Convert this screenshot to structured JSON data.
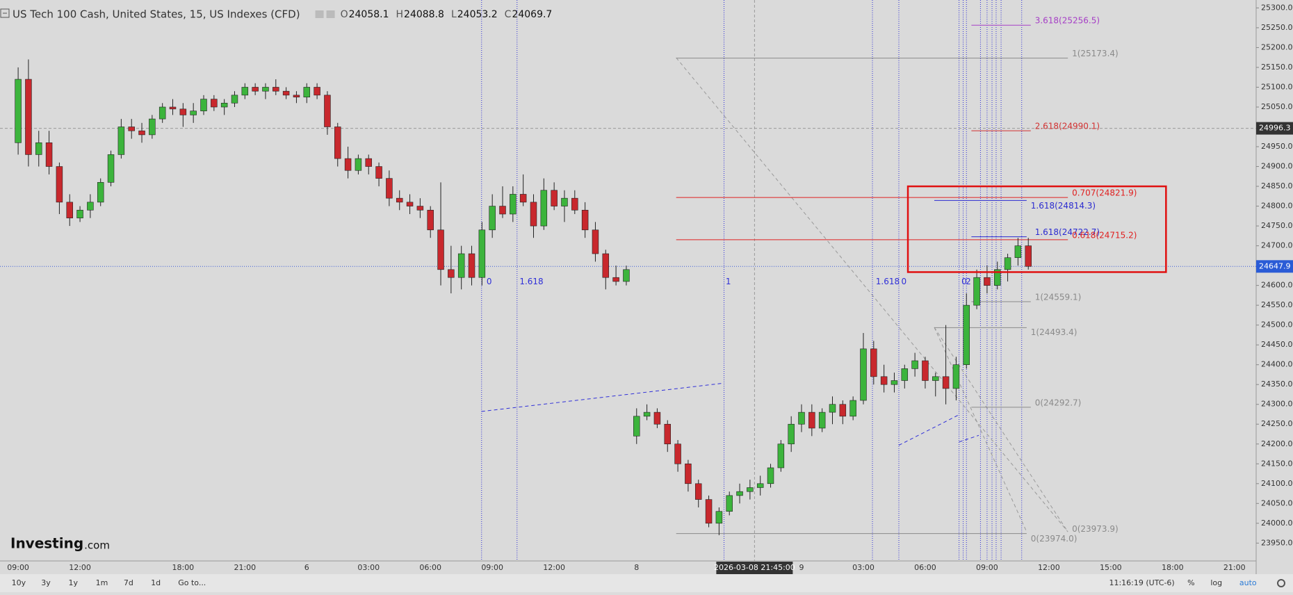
{
  "chart_data": {
    "type": "candlestick",
    "title": "US Tech 100 Cash, United States, 15, US Indexes (CFD)",
    "ohlc_legend": [
      {
        "label": "O",
        "value": 24058.1
      },
      {
        "label": "H",
        "value": 24088.8
      },
      {
        "label": "L",
        "value": 24053.2
      },
      {
        "label": "C",
        "value": 24069.7
      }
    ],
    "categories": [
      "09:00",
      null,
      null,
      null,
      null,
      null,
      "12:00",
      null,
      null,
      null,
      null,
      null,
      null,
      null,
      null,
      null,
      "18:00",
      null,
      null,
      null,
      null,
      null,
      "21:00",
      null,
      null,
      null,
      null,
      null,
      "6",
      null,
      null,
      null,
      null,
      null,
      "03:00",
      null,
      null,
      null,
      null,
      null,
      "06:00",
      null,
      null,
      null,
      null,
      null,
      "09:00",
      null,
      null,
      null,
      null,
      null,
      "12:00",
      null,
      null,
      null,
      null,
      null,
      null,
      null,
      "8",
      null,
      null,
      null,
      null,
      null,
      null,
      null,
      null,
      null,
      null,
      null,
      null,
      null,
      null,
      null,
      "9",
      null,
      null,
      null,
      null,
      null,
      "03:00",
      null,
      null,
      null,
      null,
      null,
      "06:00",
      null,
      null,
      null,
      null,
      null,
      "09:00",
      null,
      null,
      null,
      null,
      null,
      "12:00",
      null,
      null,
      null,
      null,
      null,
      "15:00",
      null,
      null,
      null,
      null,
      null,
      "18:00",
      null,
      null,
      null,
      null,
      null,
      "21:00"
    ],
    "open": [
      24960,
      25120,
      24930,
      24960,
      24900,
      24810,
      24770,
      24790,
      24810,
      24860,
      24930,
      25000,
      24990,
      24980,
      25020,
      25050,
      25045,
      25030,
      25040,
      25070,
      25050,
      25060,
      25080,
      25100,
      25090,
      25100,
      25090,
      25080,
      25075,
      25100,
      25080,
      25000,
      24920,
      24890,
      24920,
      24900,
      24870,
      24820,
      24810,
      24800,
      24790,
      24740,
      24640,
      24620,
      24680,
      24620,
      24740,
      24800,
      24780,
      24830,
      24810,
      24750,
      24840,
      24800,
      24820,
      24790,
      24740,
      24680,
      24620,
      24610,
      24220,
      24270,
      24280,
      24250,
      24200,
      24150,
      24100,
      24060,
      24000,
      24030,
      24070,
      24080,
      24090,
      24100,
      24140,
      24200,
      24250,
      24280,
      24240,
      24280,
      24300,
      24270,
      24310,
      24440,
      24370,
      24350,
      24360,
      24390,
      24410,
      24360,
      24370,
      24340,
      24400,
      24550,
      24620,
      24600,
      24640,
      24670,
      24700,
      null,
      null,
      null,
      null,
      null,
      null,
      null,
      null,
      null,
      null,
      null,
      null,
      null,
      null,
      null,
      null,
      null,
      null,
      null,
      null
    ],
    "high": [
      25150,
      25170,
      24990,
      24990,
      24910,
      24830,
      24800,
      24830,
      24870,
      24940,
      25020,
      25020,
      25010,
      25030,
      25060,
      25070,
      25060,
      25060,
      25080,
      25080,
      25070,
      25090,
      25110,
      25110,
      25110,
      25120,
      25100,
      25090,
      25110,
      25110,
      25090,
      25010,
      24950,
      24930,
      24930,
      24910,
      24890,
      24840,
      24830,
      24820,
      24800,
      24860,
      24700,
      24700,
      24700,
      24760,
      24830,
      24850,
      24850,
      24880,
      24830,
      24870,
      24860,
      24840,
      24840,
      24810,
      24760,
      24690,
      24650,
      24650,
      24290,
      24300,
      24290,
      24260,
      24210,
      24160,
      24110,
      24070,
      24040,
      24080,
      24100,
      24110,
      24120,
      24150,
      24210,
      24270,
      24300,
      24300,
      24290,
      24320,
      24310,
      24320,
      24480,
      24460,
      24400,
      24380,
      24400,
      24430,
      24420,
      24380,
      24500,
      24420,
      24580,
      24640,
      24650,
      24660,
      24680,
      24720,
      24720,
      null,
      null,
      null,
      null,
      null,
      null,
      null,
      null,
      null,
      null,
      null,
      null,
      null,
      null,
      null,
      null,
      null,
      null,
      null,
      null
    ],
    "low": [
      24930,
      24900,
      24900,
      24880,
      24780,
      24750,
      24760,
      24770,
      24800,
      24850,
      24920,
      24970,
      24960,
      24970,
      25010,
      25030,
      25000,
      25010,
      25030,
      25040,
      25030,
      25050,
      25070,
      25080,
      25070,
      25080,
      25070,
      25060,
      25060,
      25070,
      24980,
      24900,
      24870,
      24880,
      24880,
      24850,
      24800,
      24790,
      24780,
      24770,
      24720,
      24600,
      24580,
      24590,
      24600,
      24600,
      24720,
      24770,
      24760,
      24800,
      24720,
      24740,
      24790,
      24760,
      24780,
      24720,
      24660,
      24590,
      24600,
      24600,
      24200,
      24260,
      24240,
      24180,
      24130,
      24080,
      24040,
      23990,
      23970,
      24020,
      24050,
      24060,
      24070,
      24090,
      24130,
      24180,
      24230,
      24220,
      24230,
      24250,
      24250,
      24260,
      24300,
      24350,
      24330,
      24330,
      24340,
      24370,
      24340,
      24320,
      24300,
      24310,
      24390,
      24540,
      24580,
      24590,
      24610,
      24650,
      24640,
      null,
      null,
      null,
      null,
      null,
      null,
      null,
      null,
      null,
      null,
      null,
      null,
      null,
      null,
      null,
      null,
      null,
      null,
      null,
      null
    ],
    "close": [
      25120,
      24930,
      24960,
      24900,
      24810,
      24770,
      24790,
      24810,
      24860,
      24930,
      25000,
      24990,
      24980,
      25020,
      25050,
      25045,
      25030,
      25040,
      25070,
      25050,
      25060,
      25080,
      25100,
      25090,
      25100,
      25090,
      25080,
      25075,
      25100,
      25080,
      25000,
      24920,
      24890,
      24920,
      24900,
      24870,
      24820,
      24810,
      24800,
      24790,
      24740,
      24640,
      24620,
      24680,
      24620,
      24740,
      24800,
      24780,
      24830,
      24810,
      24750,
      24840,
      24800,
      24820,
      24790,
      24740,
      24680,
      24620,
      24610,
      24640,
      24270,
      24280,
      24250,
      24200,
      24150,
      24100,
      24060,
      24000,
      24030,
      24070,
      24080,
      24090,
      24100,
      24140,
      24200,
      24250,
      24280,
      24240,
      24280,
      24300,
      24270,
      24310,
      24440,
      24370,
      24350,
      24360,
      24390,
      24410,
      24360,
      24370,
      24340,
      24400,
      24550,
      24620,
      24600,
      24640,
      24670,
      24700,
      24648,
      null,
      null,
      null,
      null,
      null,
      null,
      null,
      null,
      null,
      null,
      null,
      null,
      null,
      null,
      null,
      null,
      null,
      null,
      null,
      null
    ],
    "up_color": "#3cb43c",
    "down_color": "#c8282d",
    "ylim": [
      23905,
      25320
    ],
    "yticks": [
      {
        "value": 23950,
        "label": "23950.0"
      },
      {
        "value": 24000,
        "label": "24000.0"
      },
      {
        "value": 24050,
        "label": "24050.0"
      },
      {
        "value": 24100,
        "label": "24100.0"
      },
      {
        "value": 24150,
        "label": "24150.0"
      },
      {
        "value": 24200,
        "label": "24200.0"
      },
      {
        "value": 24250,
        "label": "24250.0"
      },
      {
        "value": 24300,
        "label": "24300.0"
      },
      {
        "value": 24350,
        "label": "24350.0"
      },
      {
        "value": 24400,
        "label": "24400.0"
      },
      {
        "value": 24450,
        "label": "24450.0"
      },
      {
        "value": 24500,
        "label": "24500.0"
      },
      {
        "value": 24550,
        "label": "24550.0"
      },
      {
        "value": 24600,
        "label": "24600.0"
      },
      {
        "value": 24650,
        "label": "24650.0"
      },
      {
        "value": 24700,
        "label": "24700.0"
      },
      {
        "value": 24750,
        "label": "24750.0"
      },
      {
        "value": 24800,
        "label": "24800.0"
      },
      {
        "value": 24850,
        "label": "24850.0"
      },
      {
        "value": 24900,
        "label": "24900.0"
      },
      {
        "value": 24950,
        "label": "24950.0"
      },
      {
        "value": 25000,
        "label": "25000.0"
      },
      {
        "value": 25050,
        "label": "25050.0"
      },
      {
        "value": 25100,
        "label": "25100.0"
      },
      {
        "value": 25150,
        "label": "25150.0"
      },
      {
        "value": 25200,
        "label": "25200.0"
      },
      {
        "value": 25250,
        "label": "25250.0"
      },
      {
        "value": 25300,
        "label": "25300.0"
      }
    ],
    "crosshair_price": 24996.3,
    "last_price": 24647.9,
    "crosshair_time": "2026-03-08 21:45:00",
    "fib_levels": [
      {
        "label": "3.618(25256.5)",
        "value": 25256.5,
        "color": "#a63fc6"
      },
      {
        "label": "1(25173.4)",
        "value": 25173.4,
        "color": "#8a8a8a"
      },
      {
        "label": "2.618(24990.1)",
        "value": 24990.1,
        "color": "#d23232"
      },
      {
        "label": "0.707(24821.9)",
        "value": 24821.9,
        "color": "#e02020"
      },
      {
        "label": "1.618(24814.3)",
        "value": 24814.3,
        "color": "#2b2bd0"
      },
      {
        "label": "1.618(24722.7)",
        "value": 24722.7,
        "color": "#2b2bd0"
      },
      {
        "label": "0.618(24715.2)",
        "value": 24715.2,
        "color": "#e02020"
      },
      {
        "label": "1(24559.1)",
        "value": 24559.1,
        "color": "#8a8a8a"
      },
      {
        "label": "1(24493.4)",
        "value": 24493.4,
        "color": "#8a8a8a"
      },
      {
        "label": "0(24292.7)",
        "value": 24292.7,
        "color": "#8a8a8a"
      },
      {
        "label": "0(23973.9)",
        "value": 23973.9,
        "color": "#8a8a8a"
      },
      {
        "label": "0(23974.0)",
        "value": 23974.0,
        "color": "#8a8a8a"
      }
    ],
    "time_fib_labels": [
      "0",
      "1.618",
      "1",
      "1.618",
      "0",
      "0",
      "2",
      "1"
    ],
    "logo": [
      "Investing",
      ".com"
    ],
    "toolbar": {
      "ranges": [
        "10y",
        "3y",
        "1y",
        "1m",
        "7d",
        "1d"
      ],
      "goto": "Go to...",
      "clock": "11:16:19 (UTC-6)",
      "options": [
        "%",
        "log",
        "auto"
      ]
    }
  }
}
